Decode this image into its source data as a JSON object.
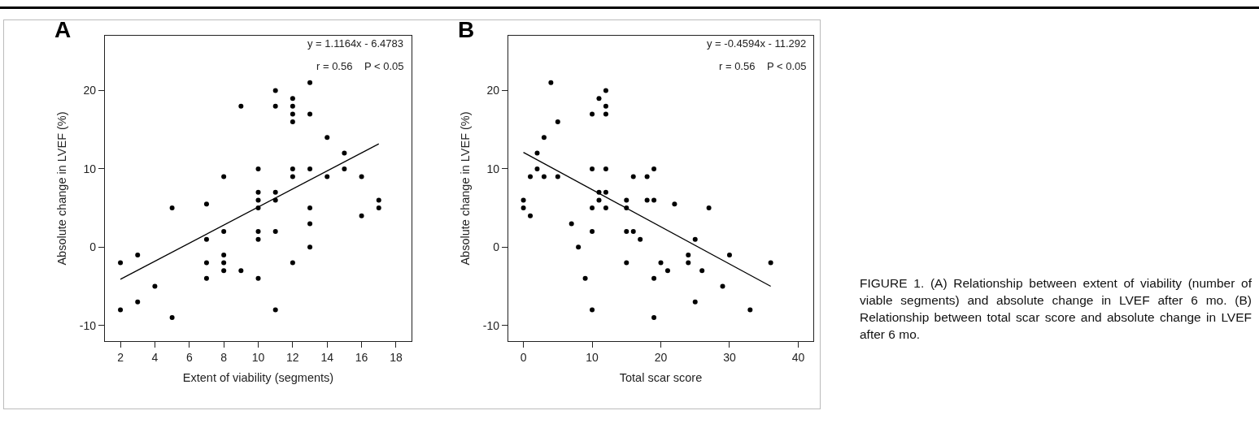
{
  "chart_data": [
    {
      "type": "scatter",
      "title": "A",
      "xlabel": "Extent of viability (segments)",
      "ylabel": "Absolute change in LVEF (%)",
      "annotations": [
        "y = 1.1164x - 6.4783",
        "r = 0.56    P < 0.05"
      ],
      "xlim": [
        1.1,
        18.9
      ],
      "xticks": [
        2,
        4,
        6,
        8,
        10,
        12,
        14,
        16,
        18
      ],
      "ylim": [
        -12,
        27
      ],
      "yticks": [
        -10,
        0,
        10,
        20
      ],
      "grid": false,
      "series": [
        {
          "color": "#000000",
          "marker": "circle",
          "x": [
            2,
            2,
            3,
            3,
            4,
            5,
            5,
            7,
            7,
            7,
            7,
            8,
            8,
            8,
            8,
            8,
            9,
            9,
            10,
            10,
            10,
            10,
            10,
            10,
            10,
            11,
            11,
            11,
            11,
            11,
            11,
            12,
            12,
            12,
            12,
            12,
            12,
            12,
            13,
            13,
            13,
            13,
            13,
            13,
            14,
            14,
            15,
            15,
            16,
            16,
            17,
            17
          ],
          "values": [
            -2,
            -8,
            -1,
            -7,
            -5,
            5,
            -9,
            5.5,
            1,
            -2,
            -4,
            9,
            2,
            -1,
            -2,
            -3,
            18,
            -3,
            10,
            7,
            6,
            5,
            2,
            1,
            -4,
            20,
            18,
            7,
            6,
            2,
            -8,
            19,
            18,
            17,
            16,
            10,
            9,
            -2,
            21,
            17,
            10,
            5,
            3,
            0,
            14,
            9,
            12,
            10,
            9,
            4,
            6,
            5
          ]
        },
        {
          "type": "line",
          "color": "#000000",
          "x": [
            2,
            17
          ],
          "values": [
            -4.1,
            13.2
          ]
        }
      ]
    },
    {
      "type": "scatter",
      "title": "B",
      "xlabel": "Total scar score",
      "ylabel": "Absolute change in LVEF (%)",
      "annotations": [
        "y = -0.4594x - 11.292",
        "r = 0.56    P < 0.05"
      ],
      "xlim": [
        -2.2,
        42.2
      ],
      "xticks": [
        0,
        10,
        20,
        30,
        40
      ],
      "ylim": [
        -12,
        27
      ],
      "yticks": [
        -10,
        0,
        10,
        20
      ],
      "grid": false,
      "series": [
        {
          "color": "#000000",
          "marker": "circle",
          "x": [
            0,
            0,
            1,
            1,
            2,
            2,
            3,
            3,
            4,
            5,
            5,
            7,
            8,
            9,
            10,
            10,
            10,
            10,
            10,
            11,
            11,
            11,
            12,
            12,
            12,
            12,
            12,
            12,
            15,
            15,
            15,
            15,
            16,
            16,
            17,
            18,
            18,
            19,
            19,
            19,
            19,
            20,
            21,
            22,
            24,
            24,
            25,
            25,
            26,
            27,
            29,
            30,
            33,
            36
          ],
          "values": [
            6,
            5,
            9,
            4,
            12,
            10,
            14,
            9,
            21,
            16,
            9,
            3,
            0,
            -4,
            17,
            10,
            5,
            2,
            -8,
            19,
            7,
            6,
            20,
            18,
            17,
            10,
            7,
            5,
            6,
            5,
            2,
            -2,
            9,
            2,
            1,
            9,
            6,
            10,
            6,
            -4,
            -9,
            -2,
            -3,
            5.5,
            -1,
            -2,
            1,
            -7,
            -3,
            5,
            -5,
            -1,
            -8,
            -2
          ]
        },
        {
          "type": "line",
          "color": "#000000",
          "x": [
            0,
            36
          ],
          "values": [
            12.1,
            -5
          ]
        }
      ]
    },
    {
      "type": "other",
      "annotations": [
        "FIGURE 1. (A) Relationship between extent of viability (number of viable segments) and absolute change in LVEF after 6 mo. (B) Relationship between total scar score and absolute change in LVEF after 6 mo."
      ]
    }
  ]
}
